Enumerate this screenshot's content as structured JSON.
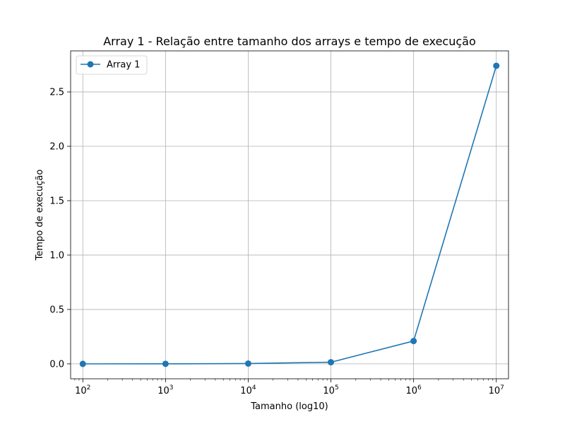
{
  "chart_data": {
    "type": "line",
    "title": "Array 1 - Relação entre tamanho dos arrays e tempo de execução",
    "xlabel": "Tamanho (log10)",
    "ylabel": "Tempo de execução",
    "x_scale": "log10",
    "x_ticks": [
      {
        "base": "10",
        "exp": "2"
      },
      {
        "base": "10",
        "exp": "3"
      },
      {
        "base": "10",
        "exp": "4"
      },
      {
        "base": "10",
        "exp": "5"
      },
      {
        "base": "10",
        "exp": "6"
      },
      {
        "base": "10",
        "exp": "7"
      }
    ],
    "y_ticks": [
      "0.0",
      "0.5",
      "1.0",
      "1.5",
      "2.0",
      "2.5"
    ],
    "grid": true,
    "legend_position": "upper-left",
    "series": [
      {
        "name": "Array 1",
        "color": "#1f77b4",
        "marker": "circle",
        "x": [
          100,
          1000,
          10000,
          100000,
          1000000,
          10000000
        ],
        "y": [
          0.0001,
          0.0005,
          0.003,
          0.015,
          0.21,
          2.74
        ]
      }
    ]
  }
}
